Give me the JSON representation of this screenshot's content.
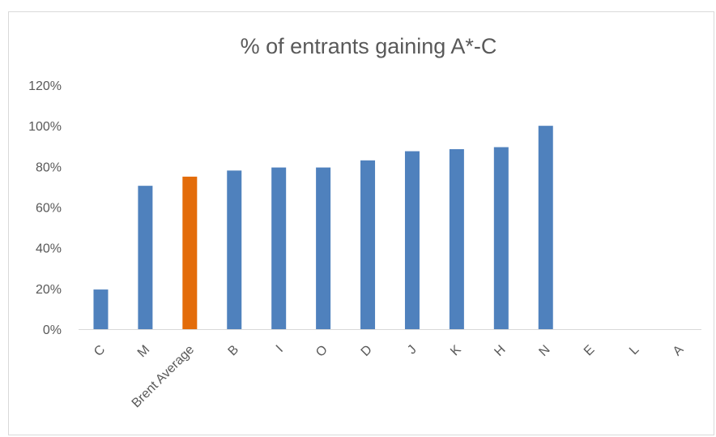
{
  "chart_data": {
    "type": "bar",
    "title": "% of entrants gaining A*-C",
    "categories": [
      "C",
      "M",
      "Brent Average",
      "B",
      "I",
      "O",
      "D",
      "J",
      "K",
      "H",
      "N",
      "E",
      "L",
      "A"
    ],
    "values": [
      19.5,
      70.5,
      75,
      78,
      79.5,
      79.5,
      83,
      87.5,
      88.5,
      89.5,
      100,
      0,
      0,
      0
    ],
    "highlight_category": "Brent Average",
    "colors": {
      "bar": "#4f81bd",
      "highlight": "#e36c0a",
      "gridline": "#d9d9d9",
      "axis_text": "#595959"
    },
    "ylim": [
      0,
      120
    ],
    "yticks": [
      "0%",
      "20%",
      "40%",
      "60%",
      "80%",
      "100%",
      "120%"
    ],
    "ytick_values": [
      0,
      20,
      40,
      60,
      80,
      100,
      120
    ],
    "grid": false,
    "legend": "none"
  }
}
